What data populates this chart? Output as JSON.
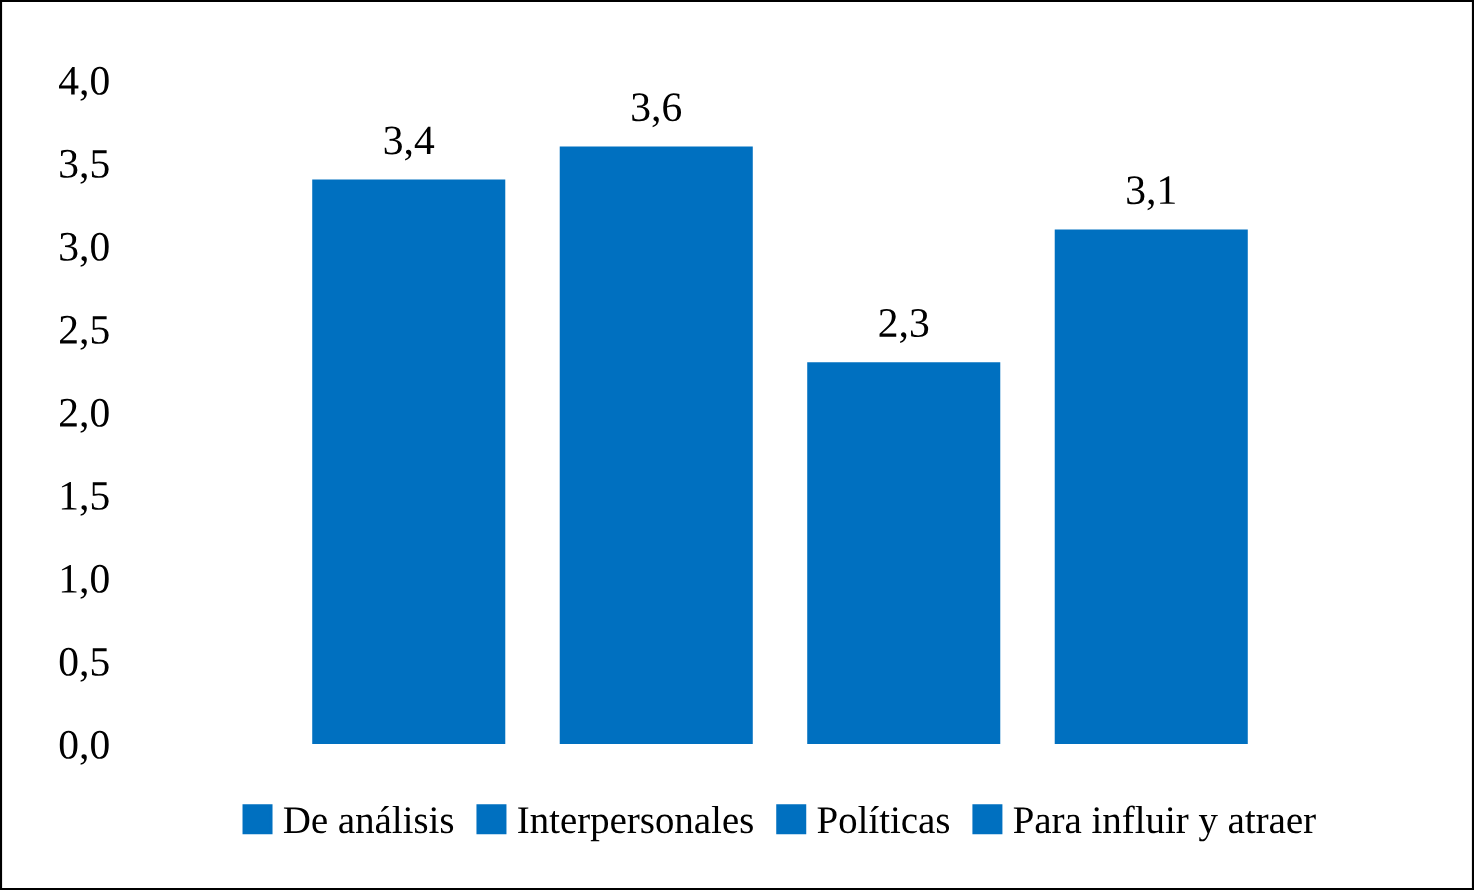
{
  "chart_data": {
    "type": "bar",
    "categories": [
      null
    ],
    "series": [
      {
        "name": "De análisis",
        "color": "#0070c0",
        "values": [
          3.4
        ],
        "value_labels": [
          "3,4"
        ]
      },
      {
        "name": "Interpersonales",
        "color": "#0070c0",
        "values": [
          3.6
        ],
        "value_labels": [
          "3,6"
        ]
      },
      {
        "name": "Políticas",
        "color": "#0070c0",
        "values": [
          2.3
        ],
        "value_labels": [
          "2,3"
        ]
      },
      {
        "name": "Para influir y atraer",
        "color": "#0070c0",
        "values": [
          3.1
        ],
        "value_labels": [
          "3,1"
        ]
      }
    ],
    "ylim": [
      0,
      4
    ],
    "yticks": [
      {
        "value": 0,
        "label": "0,0"
      },
      {
        "value": 0.5,
        "label": "0,5"
      },
      {
        "value": 1,
        "label": "1,0"
      },
      {
        "value": 1.5,
        "label": "1,5"
      },
      {
        "value": 2,
        "label": "2,0"
      },
      {
        "value": 2.5,
        "label": "2,5"
      },
      {
        "value": 3,
        "label": "3,0"
      },
      {
        "value": 3.5,
        "label": "3,5"
      },
      {
        "value": 4,
        "label": "4,0"
      }
    ],
    "grid": false,
    "legend": "bottom"
  }
}
